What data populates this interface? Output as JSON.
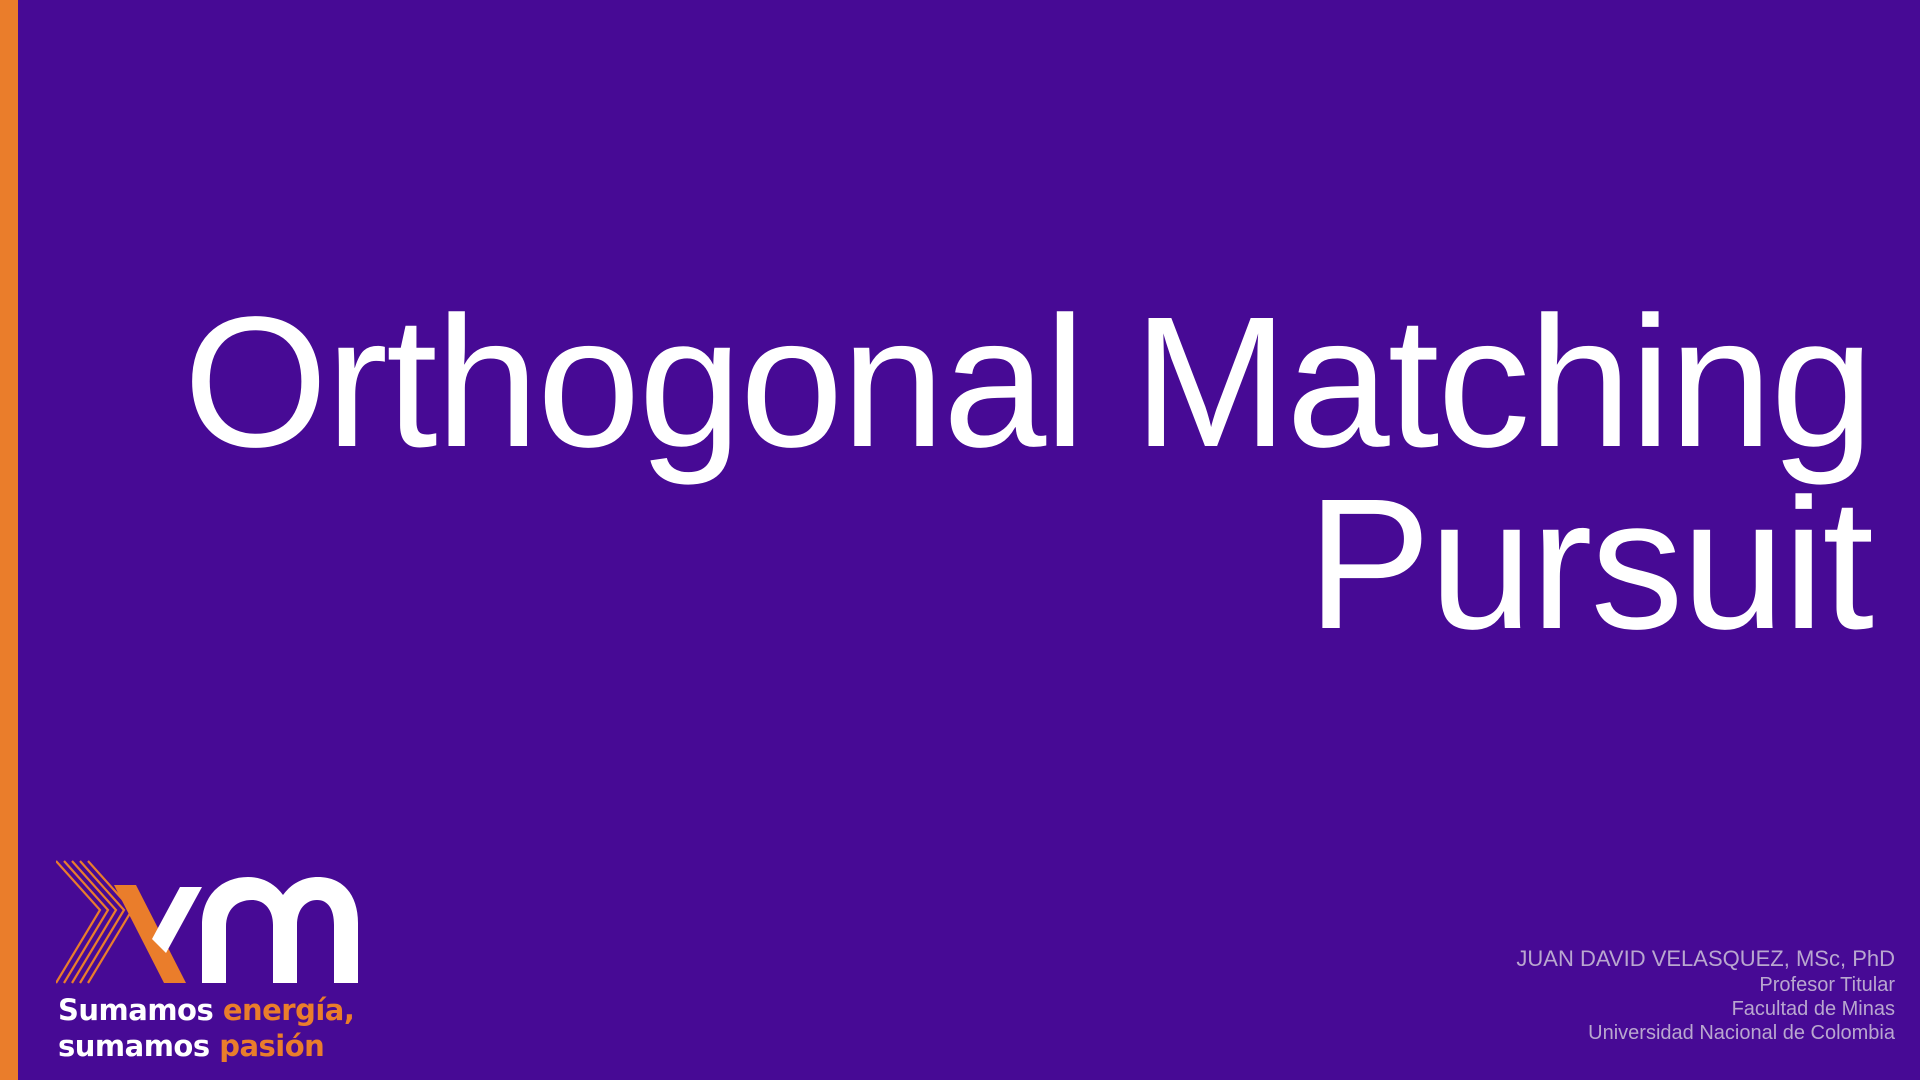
{
  "slide": {
    "title_line1": "Orthogonal Matching",
    "title_line2": "Pursuit",
    "background_color": "#470a95",
    "accent_color": "#ea7d2b"
  },
  "logo": {
    "brand": "xm",
    "tagline_line1_a": "Sumamos ",
    "tagline_line1_b": "energía,",
    "tagline_line2_a": "sumamos ",
    "tagline_line2_b": "pasión"
  },
  "author": {
    "name": "JUAN DAVID VELASQUEZ, MSc, PhD",
    "position": "Profesor Titular",
    "faculty": "Facultad de Minas",
    "university": "Universidad Nacional de Colombia"
  }
}
